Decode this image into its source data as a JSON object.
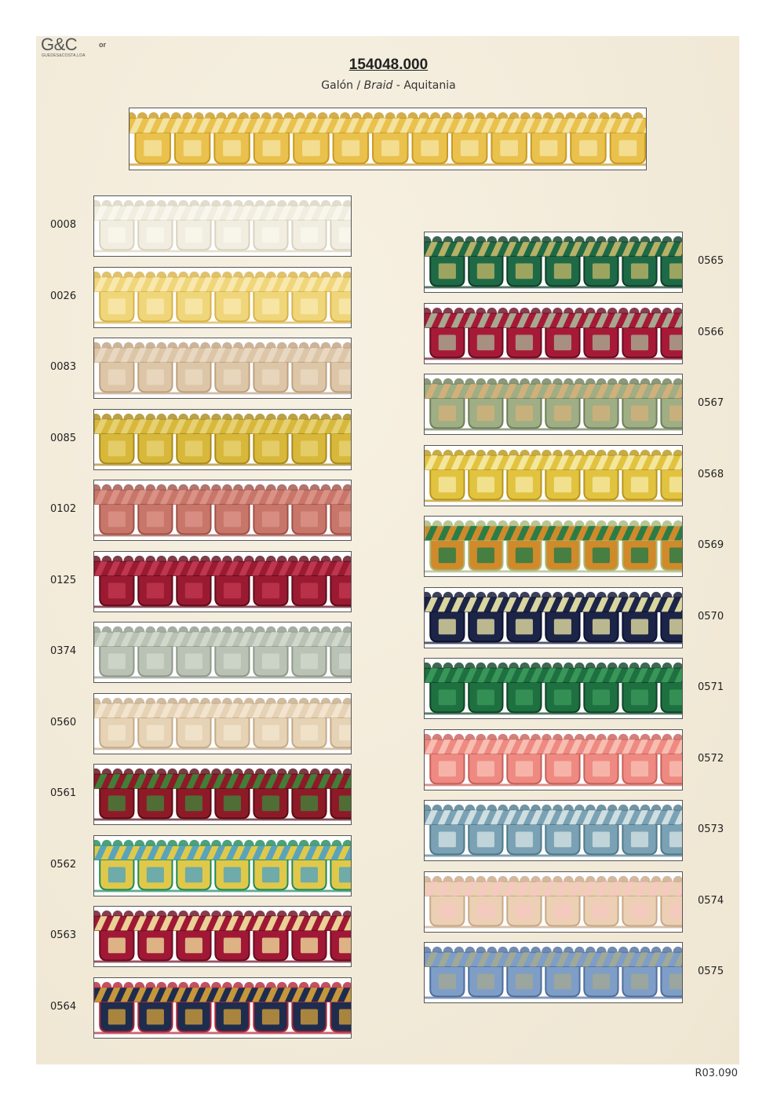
{
  "logo": {
    "main": "G&C",
    "superscript": "or",
    "sub": "GUEDES&COSTA,LDA"
  },
  "reference": "154048.000",
  "subtitle": {
    "part1": "Galón / ",
    "part2": "Braid",
    "part3": " - Aquitania"
  },
  "hero": {
    "base": "#e9c14c",
    "cord": "#f5e6a8",
    "accent": "#c99a22"
  },
  "left_column": [
    {
      "code": "0008",
      "base": "#f1ede0",
      "cord": "#faf7ee",
      "accent": "#d9d3bf"
    },
    {
      "code": "0026",
      "base": "#f0d67a",
      "cord": "#f9eab4",
      "accent": "#d8b34a"
    },
    {
      "code": "0083",
      "base": "#ddc6a8",
      "cord": "#ead9c3",
      "accent": "#bfa17f"
    },
    {
      "code": "0085",
      "base": "#d8b83a",
      "cord": "#e8d37a",
      "accent": "#a98a1c"
    },
    {
      "code": "0102",
      "base": "#c8766a",
      "cord": "#dc958a",
      "accent": "#9f5248"
    },
    {
      "code": "0125",
      "base": "#9a1a32",
      "cord": "#c23a52",
      "accent": "#5e0c1c"
    },
    {
      "code": "0374",
      "base": "#b9c2b4",
      "cord": "#d3dacd",
      "accent": "#8f9a8a"
    },
    {
      "code": "0560",
      "base": "#e6d2b4",
      "cord": "#f3e6d0",
      "accent": "#c4ab88"
    },
    {
      "code": "0561",
      "base": "#8e1a28",
      "cord": "#3a8a3a",
      "accent": "#5a0c16"
    },
    {
      "code": "0562",
      "base": "#e0c94a",
      "cord": "#4aa0c8",
      "accent": "#1f8a5a"
    },
    {
      "code": "0563",
      "base": "#a01836",
      "cord": "#f2e6a0",
      "accent": "#6a0c20"
    },
    {
      "code": "0564",
      "base": "#1e2c4e",
      "cord": "#d8a23a",
      "accent": "#b0283a"
    }
  ],
  "right_column": [
    {
      "code": "0565",
      "base": "#1e6a46",
      "cord": "#c8b86a",
      "accent": "#0e3e28"
    },
    {
      "code": "0566",
      "base": "#a61a38",
      "cord": "#a8b89a",
      "accent": "#6a0c22"
    },
    {
      "code": "0567",
      "base": "#9fae84",
      "cord": "#d6b07a",
      "accent": "#6e7e58"
    },
    {
      "code": "0568",
      "base": "#e2c340",
      "cord": "#f5eba8",
      "accent": "#b8961c"
    },
    {
      "code": "0569",
      "base": "#d08a2a",
      "cord": "#1a7a4a",
      "accent": "#a8b878"
    },
    {
      "code": "0570",
      "base": "#1c2448",
      "cord": "#f0eaa8",
      "accent": "#0c1230"
    },
    {
      "code": "0571",
      "base": "#1e7040",
      "cord": "#3c9a5c",
      "accent": "#0e4426"
    },
    {
      "code": "0572",
      "base": "#ee8a82",
      "cord": "#f8c2b6",
      "accent": "#c8605a"
    },
    {
      "code": "0573",
      "base": "#7aa2b4",
      "cord": "#d8e4e6",
      "accent": "#4f7a8c"
    },
    {
      "code": "0574",
      "base": "#ecd0b4",
      "cord": "#f6c8c0",
      "accent": "#c8a888"
    },
    {
      "code": "0575",
      "base": "#7e9ec8",
      "cord": "#a4a890",
      "accent": "#4f6e9c"
    }
  ],
  "footer": "R03.090"
}
